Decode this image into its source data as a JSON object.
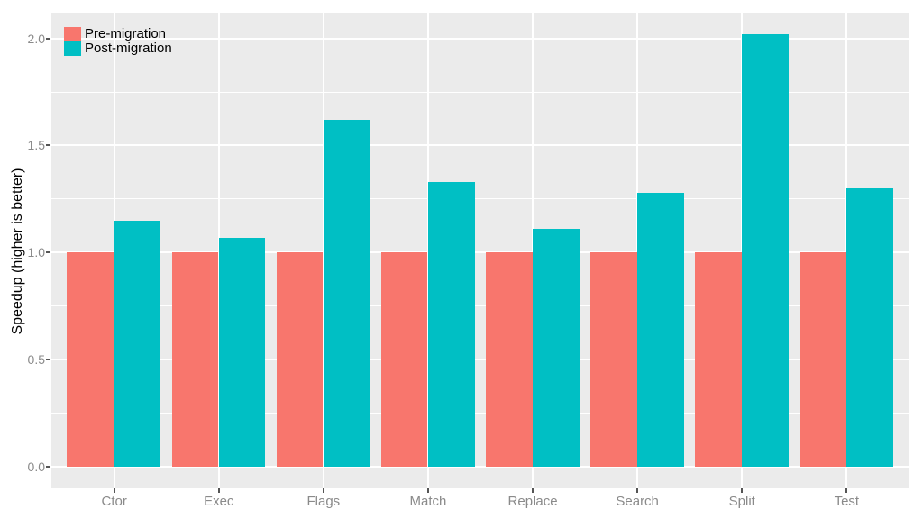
{
  "figure": {
    "background_color": "#FFFFFF",
    "panel_background_color": "#EBEBEB",
    "gridline_color": "#FFFFFF",
    "axis_text_color": "#8A8A8A",
    "axis_title_color": "#000000",
    "tick_mark_color": "#555555"
  },
  "chart_data": {
    "type": "bar",
    "bar_layout": "dodged",
    "title": "",
    "xlabel": "",
    "ylabel": "Speedup (higher is better)",
    "categories": [
      "Ctor",
      "Exec",
      "Flags",
      "Match",
      "Replace",
      "Search",
      "Split",
      "Test"
    ],
    "series": [
      {
        "name": "Pre-migration",
        "color": "#F8766D",
        "values": [
          1.0,
          1.0,
          1.0,
          1.0,
          1.0,
          1.0,
          1.0,
          1.0
        ]
      },
      {
        "name": "Post-migration",
        "color": "#00BFC4",
        "values": [
          1.15,
          1.07,
          1.62,
          1.33,
          1.11,
          1.28,
          2.02,
          1.3
        ]
      }
    ],
    "ylim": [
      -0.1,
      2.12
    ],
    "y_ticks": [
      0.0,
      0.5,
      1.0,
      1.5,
      2.0
    ],
    "y_tick_labels": [
      "0.0",
      "0.5",
      "1.0",
      "1.5",
      "2.0"
    ],
    "y_minor_ticks": [
      0.25,
      0.75,
      1.25,
      1.75
    ],
    "grid": "on",
    "legend_position": "top-left-inside"
  }
}
